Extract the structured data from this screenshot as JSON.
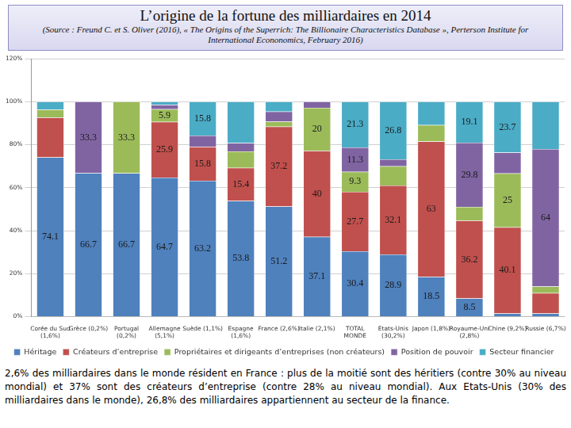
{
  "chart_data": {
    "type": "bar",
    "title": "L’origine de la fortune des milliardaires en 2014",
    "subtitle": "(Source : Freund C. et S. Oliver (2016), « The Origins of the Superrich: The Billionaire Characteristics Database », Perterson Institute for International Econonomics, February 2016)",
    "caption": "2,6% des milliardaires dans le monde résident en France : plus de la moitié sont des héritiers (contre 30% au niveau mondial) et 37% sont des créateurs d’entreprise (contre 28% au niveau mondial). Aux Etats-Unis (30% des milliardaires dans le monde), 26,8% des milliardaires appartiennent au secteur de la finance.",
    "categories": [
      [
        "Corée du Sud",
        "(1,6%)"
      ],
      [
        "Grèce (0,2%)"
      ],
      [
        "Portugal",
        "(0,2%)"
      ],
      [
        "Allemagne",
        "(5,1%)"
      ],
      [
        "Suède (1,1%)"
      ],
      [
        "Espagne",
        "(1,6%)"
      ],
      [
        "France (2,6%)"
      ],
      [
        "Italie (2,1%)"
      ],
      [
        "TOTAL",
        "MONDE"
      ],
      [
        "Etats-Unis",
        "(30,2%)"
      ],
      [
        "Japon (1,8%)"
      ],
      [
        "Royaume-Uni",
        "(2,8%)"
      ],
      [
        "Chine (9,2%)"
      ],
      [
        "Russie (6,7%)"
      ]
    ],
    "series": [
      {
        "name": "Héritage",
        "color": "#4f81bd",
        "values": [
          74.1,
          66.7,
          66.7,
          64.7,
          63.2,
          53.8,
          51.2,
          37.1,
          30.4,
          28.9,
          18.5,
          8.5,
          1.5,
          1.5
        ],
        "value_labels": [
          "74.1",
          "66.7",
          "66.7",
          "64.7",
          "63.2",
          "53.8",
          "51.2",
          "37.1",
          "30.4",
          "28.9",
          "18.5",
          "8.5",
          null,
          null
        ]
      },
      {
        "name": "Créateurs d’entreprise",
        "color": "#c0504d",
        "values": [
          18.5,
          0,
          0,
          25.9,
          15.8,
          15.4,
          37.2,
          40,
          27.7,
          32.1,
          63,
          36.2,
          40.1,
          9.5
        ],
        "value_labels": [
          null,
          null,
          null,
          "25.9",
          "15.8",
          "15.4",
          "37.2",
          "40",
          "27.7",
          "32.1",
          "63",
          "36.2",
          "40.1",
          null
        ]
      },
      {
        "name": "Propriétaires et dirigeants d’entreprises (non créateurs)",
        "color": "#9bbb59",
        "values": [
          3.7,
          0,
          33.3,
          5.9,
          0,
          7.7,
          2.3,
          20,
          9.3,
          9,
          7.6,
          6.4,
          25,
          3
        ],
        "value_labels": [
          null,
          null,
          "33.3",
          "5.9",
          null,
          null,
          null,
          "20",
          "9.3",
          null,
          null,
          null,
          "25",
          null
        ]
      },
      {
        "name": "Position de pouvoir",
        "color": "#8064a2",
        "values": [
          0,
          33.3,
          0,
          2,
          5.2,
          3.8,
          4.7,
          2.9,
          11.3,
          3.2,
          0,
          29.8,
          9.7,
          64
        ],
        "value_labels": [
          null,
          "33.3",
          null,
          null,
          null,
          null,
          null,
          null,
          "11.3",
          null,
          null,
          "29.8",
          null,
          "64"
        ]
      },
      {
        "name": "Secteur financier",
        "color": "#4bacc6",
        "values": [
          3.7,
          0,
          0,
          1.5,
          15.8,
          19.3,
          4.6,
          0,
          21.3,
          26.8,
          10.9,
          19.1,
          23.7,
          22
        ],
        "value_labels": [
          null,
          null,
          null,
          null,
          "15.8",
          null,
          null,
          null,
          "21.3",
          "26.8",
          null,
          "19.1",
          "23.7",
          null
        ]
      }
    ],
    "stacked": true,
    "data_labels": true,
    "grid": true,
    "legend": "bottom",
    "ylim": [
      0,
      120
    ],
    "yticks": [
      {
        "value": 0,
        "label": "0%"
      },
      {
        "value": 20,
        "label": "20%"
      },
      {
        "value": 40,
        "label": "40%"
      },
      {
        "value": 60,
        "label": "60%"
      },
      {
        "value": 80,
        "label": "80%"
      },
      {
        "value": 100,
        "label": "100%"
      },
      {
        "value": 120,
        "label": "120%"
      }
    ]
  }
}
